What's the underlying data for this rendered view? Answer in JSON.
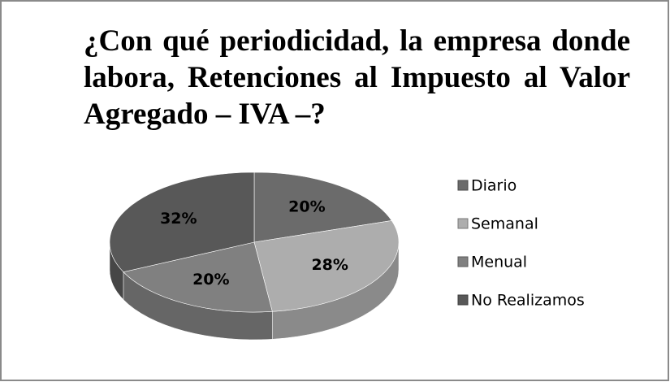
{
  "chart_data": {
    "type": "pie",
    "title": "¿Con qué periodicidad, la empresa donde labora, Retenciones al Impuesto al Valor Agregado – IVA –?",
    "categories": [
      "Diario",
      "Semanal",
      "Menual",
      "No Realizamos"
    ],
    "values": [
      20,
      28,
      20,
      32
    ],
    "value_labels": [
      "20%",
      "28%",
      "20%",
      "32%"
    ],
    "colors": [
      "#6b6b6b",
      "#adadad",
      "#808080",
      "#585858"
    ],
    "legend": "right"
  }
}
